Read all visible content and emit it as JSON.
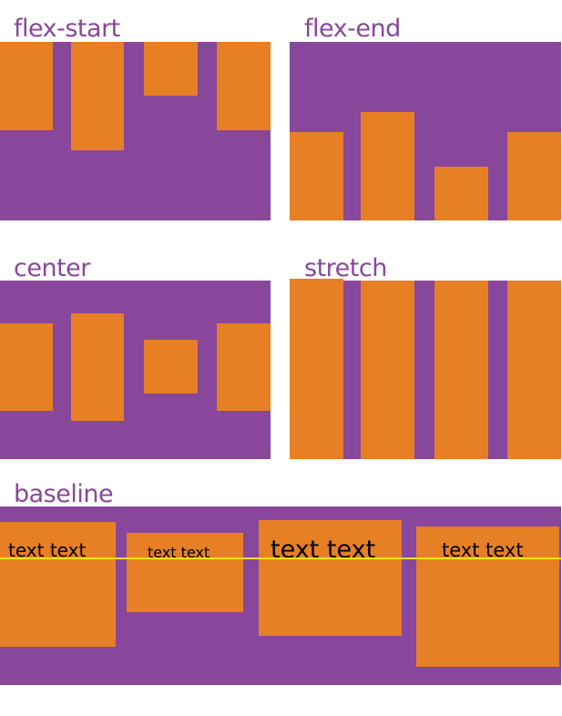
{
  "colors": {
    "container": "#88479a",
    "item": "#e77f24",
    "baseline_line": "#f2e600",
    "label": "#88479a"
  },
  "panels": {
    "flex_start": {
      "label": "flex-start"
    },
    "flex_end": {
      "label": "flex-end"
    },
    "center": {
      "label": "center"
    },
    "stretch": {
      "label": "stretch"
    },
    "baseline": {
      "label": "baseline",
      "items": [
        "text text",
        "text text",
        "text text",
        "text text"
      ]
    }
  }
}
